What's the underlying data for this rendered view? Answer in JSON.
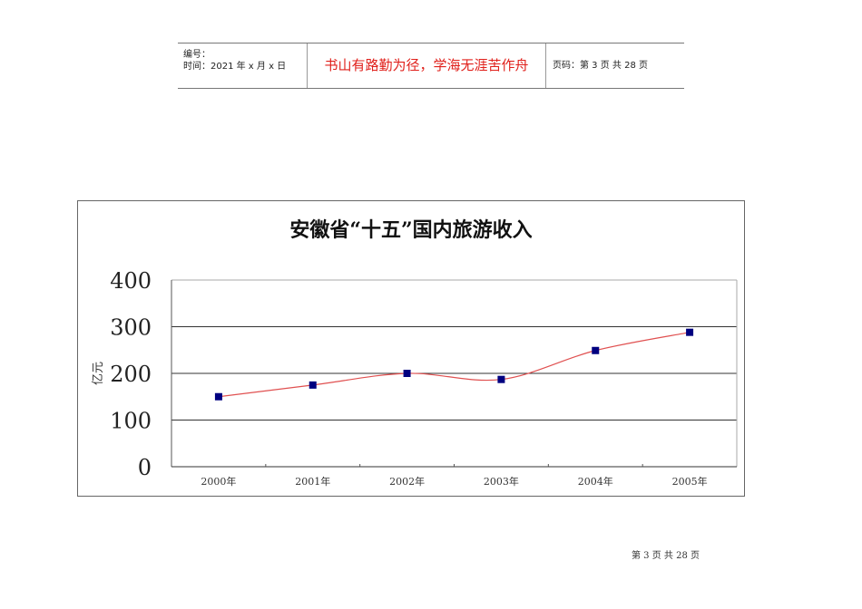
{
  "header": {
    "number_label": "编号：",
    "time_label": "时间：2021 年 x 月 x 日",
    "motto": "书山有路勤为径，学海无涯苦作舟",
    "page_info": "页码：第 3 页  共 28 页"
  },
  "footer": {
    "page_info": "第 3 页 共 28 页"
  },
  "colors": {
    "line": "#e05050",
    "marker": "#000080",
    "grid": "#333333",
    "motto": "#e0201b"
  },
  "chart_data": {
    "type": "line",
    "title": "安徽省“十五”国内旅游收入",
    "xlabel": "",
    "ylabel": "亿元",
    "categories": [
      "2000年",
      "2001年",
      "2002年",
      "2003年",
      "2004年",
      "2005年"
    ],
    "series": [
      {
        "name": "国内旅游收入",
        "values": [
          150,
          175,
          200,
          187,
          249,
          288
        ]
      }
    ],
    "yticks": [
      0,
      100,
      200,
      300,
      400
    ],
    "ylim": [
      0,
      400
    ],
    "grid": true,
    "legend": "none",
    "smoothed": true
  }
}
